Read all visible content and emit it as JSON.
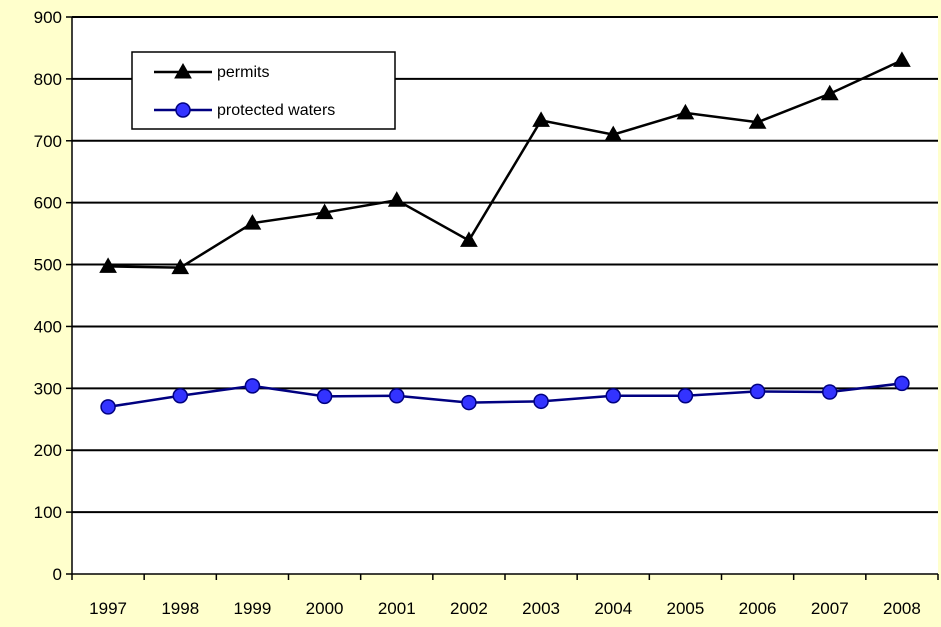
{
  "chart_data": {
    "type": "line",
    "title": "",
    "xlabel": "",
    "ylabel": "",
    "categories": [
      "1997",
      "1998",
      "1999",
      "2000",
      "2001",
      "2002",
      "2003",
      "2004",
      "2005",
      "2006",
      "2007",
      "2008"
    ],
    "ylim": [
      0,
      900
    ],
    "yticks": [
      0,
      100,
      200,
      300,
      400,
      500,
      600,
      700,
      800,
      900
    ],
    "grid": true,
    "legend_position": "top-left",
    "series": [
      {
        "name": "permits",
        "marker": "triangle",
        "color": "#000000",
        "values": [
          497,
          495,
          567,
          584,
          604,
          539,
          733,
          710,
          745,
          730,
          776,
          830
        ]
      },
      {
        "name": "protected waters",
        "marker": "circle",
        "color": "#000080",
        "values": [
          270,
          288,
          304,
          287,
          288,
          277,
          279,
          288,
          288,
          295,
          294,
          308
        ]
      }
    ]
  },
  "colors": {
    "background": "#ffffcc",
    "plot_background": "#ffffff",
    "circle_fill": "#3333ff"
  }
}
